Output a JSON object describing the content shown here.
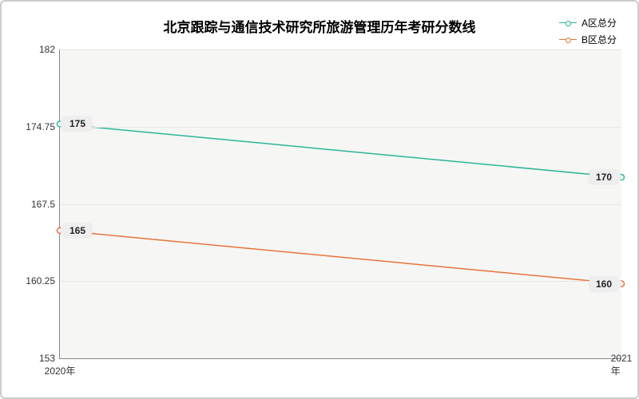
{
  "chart": {
    "type": "line",
    "title": "北京跟踪与通信技术研究所旅游管理历年考研分数线",
    "title_fontsize": 17,
    "background_color": "#ffffff",
    "plot_background": "#f6f6f4",
    "border_color": "#cccccc",
    "grid_color": "#e6e6e4",
    "axis_color": "#888888",
    "text_color": "#333333",
    "label_fontsize": 12,
    "line_width": 1.5,
    "marker_style": "circle",
    "marker_size": 5,
    "x": {
      "categories": [
        "2020年",
        "2021年"
      ]
    },
    "y": {
      "min": 153,
      "max": 182,
      "ticks": [
        153,
        160.25,
        167.5,
        174.75,
        182
      ]
    },
    "series": [
      {
        "key": "a",
        "name": "A区总分",
        "color": "#2bb59a",
        "values": [
          175,
          170
        ]
      },
      {
        "key": "b",
        "name": "B区总分",
        "color": "#e8743b",
        "values": [
          165,
          160
        ]
      }
    ],
    "legend_position": "top-right"
  }
}
